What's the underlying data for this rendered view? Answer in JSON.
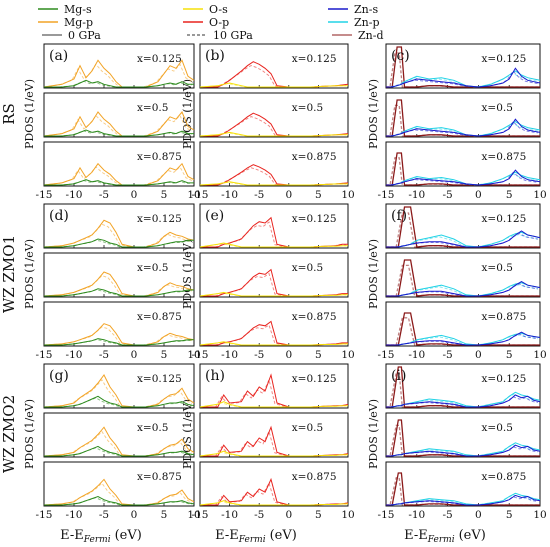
{
  "legend": [
    {
      "label": "Mg-s",
      "color": "#2e8b1e",
      "dash": false
    },
    {
      "label": "Mg-p",
      "color": "#f2a427",
      "dash": false
    },
    {
      "label": "0 GPa",
      "color": "#333333",
      "dash": false
    },
    {
      "label": "O-s",
      "color": "#f5e10a",
      "dash": false
    },
    {
      "label": "O-p",
      "color": "#e8241f",
      "dash": false
    },
    {
      "label": "10 GPa",
      "color": "#333333",
      "dash": true
    },
    {
      "label": "Zn-s",
      "color": "#1a1acc",
      "dash": false
    },
    {
      "label": "Zn-p",
      "color": "#22d3e6",
      "dash": false
    },
    {
      "label": "Zn-d",
      "color": "#8b1a1a",
      "dash": false
    }
  ],
  "row_groups": [
    "RS",
    "WZ ZMO1",
    "WZ ZMO2"
  ],
  "ylabel": "PDOS (1/eV)",
  "xlabel_main": "E-E",
  "xlabel_sub": "Fermi",
  "xlabel_unit": "(eV)",
  "x_ticks": [
    "-15",
    "-10",
    "-5",
    "0",
    "5",
    "10"
  ],
  "panel_letters": [
    "(a)",
    "(b)",
    "(c)",
    "(d)",
    "(e)",
    "(f)",
    "(g)",
    "(h)",
    "(i)"
  ],
  "concentrations": [
    "x=0.125",
    "x=0.5",
    "x=0.875"
  ],
  "chart_data": {
    "type": "line",
    "xlabel": "E-E_Fermi (eV)",
    "ylabel": "PDOS (1/eV)",
    "xlim": [
      -15,
      10
    ],
    "grid": false,
    "legend_position": "top",
    "columns": [
      "Mg",
      "O",
      "Zn"
    ],
    "pressures": [
      "0 GPa",
      "10 GPa"
    ],
    "panels": [
      {
        "letter": "(a)",
        "structure": "RS",
        "species": "Mg",
        "x": [
          -15,
          -12,
          -10,
          -9,
          -8,
          -7,
          -6,
          -5,
          -4,
          -3,
          -2,
          0,
          2,
          4,
          5,
          6,
          7,
          8,
          9,
          10
        ],
        "series": {
          "Mg-p": [
            0,
            0.2,
            0.6,
            1.6,
            0.7,
            1.2,
            2.0,
            1.4,
            1.0,
            0.4,
            0,
            0,
            0,
            0.4,
            1.0,
            1.6,
            1.4,
            2.0,
            0.8,
            0.5
          ],
          "Mg-s": [
            0,
            0,
            0.1,
            0.3,
            0.5,
            0.3,
            0.4,
            0.2,
            0.1,
            0,
            0,
            0,
            0,
            0.1,
            0.2,
            0.3,
            0.2,
            0.4,
            0.2,
            0.2
          ]
        }
      },
      {
        "letter": "(b)",
        "structure": "RS",
        "species": "O",
        "x": [
          -15,
          -12,
          -11,
          -10,
          -8,
          -7,
          -6,
          -5,
          -4,
          -3,
          -2,
          0,
          2,
          4,
          6,
          8,
          9,
          10
        ],
        "series": {
          "O-p": [
            0,
            0,
            0.2,
            0.5,
            1.2,
            1.6,
            1.9,
            1.7,
            1.4,
            1.0,
            0.1,
            0,
            0,
            0,
            0.05,
            0.1,
            0.15,
            0.2
          ],
          "O-s": [
            0,
            0.1,
            0.2,
            0.3,
            0.1,
            0,
            0,
            0,
            0,
            0,
            0,
            0,
            0,
            0,
            0.05,
            0.1,
            0.1,
            0.1
          ]
        }
      },
      {
        "letter": "(c)",
        "structure": "RS",
        "species": "Zn",
        "x": [
          -15,
          -14,
          -13.2,
          -12.5,
          -12,
          -10,
          -8,
          -6,
          -4,
          -2,
          0,
          2,
          4,
          5,
          6,
          7,
          8,
          9,
          10
        ],
        "series": {
          "Zn-d": [
            0,
            0,
            3.0,
            3.0,
            0,
            0,
            0.1,
            0.1,
            0,
            0,
            0,
            0,
            0,
            0,
            0,
            0,
            0,
            0,
            0
          ],
          "Zn-p": [
            0,
            0,
            0.1,
            0.2,
            0.4,
            0.8,
            0.6,
            0.7,
            0.5,
            0.1,
            0,
            0.2,
            0.6,
            0.9,
            1.2,
            0.9,
            0.7,
            0.6,
            0.5
          ],
          "Zn-s": [
            0,
            0,
            0.1,
            0.2,
            0.3,
            0.6,
            0.5,
            0.4,
            0.3,
            0.1,
            0,
            0.1,
            0.3,
            0.6,
            1.4,
            0.8,
            0.5,
            0.4,
            0.3
          ]
        }
      },
      {
        "letter": "(d)",
        "structure": "WZ ZMO1",
        "species": "Mg",
        "x": [
          -15,
          -12,
          -10,
          -9,
          -8,
          -7,
          -6,
          -5,
          -4,
          -3,
          -2,
          0,
          2,
          4,
          5,
          6,
          7,
          8,
          9,
          10
        ],
        "series": {
          "Mg-p": [
            0,
            0.1,
            0.3,
            0.5,
            0.7,
            0.9,
            1.4,
            2.0,
            1.8,
            1.1,
            0.2,
            0,
            0,
            0.3,
            0.8,
            1.1,
            0.9,
            0.8,
            0.6,
            0.5
          ],
          "Mg-s": [
            0,
            0,
            0.1,
            0.2,
            0.3,
            0.4,
            0.6,
            0.5,
            0.3,
            0.2,
            0,
            0,
            0,
            0.1,
            0.2,
            0.3,
            0.4,
            0.4,
            0.5,
            0.5
          ]
        }
      },
      {
        "letter": "(e)",
        "structure": "WZ ZMO1",
        "species": "O",
        "x": [
          -15,
          -12,
          -11,
          -10,
          -8,
          -7,
          -6,
          -5,
          -4,
          -3,
          -2,
          0,
          2,
          4,
          6,
          8,
          9,
          10
        ],
        "series": {
          "O-p": [
            0,
            0,
            0.2,
            0.3,
            0.6,
            1.1,
            1.6,
            1.9,
            1.8,
            2.2,
            0.2,
            0,
            0,
            0,
            0.05,
            0.1,
            0.2,
            0.2
          ],
          "O-s": [
            0,
            0.2,
            0.3,
            0.2,
            0,
            0,
            0,
            0,
            0,
            0,
            0,
            0,
            0,
            0,
            0.05,
            0.05,
            0.1,
            0.1
          ]
        }
      },
      {
        "letter": "(f)",
        "structure": "WZ ZMO1",
        "species": "Zn",
        "x": [
          -15,
          -14,
          -13,
          -12,
          -11,
          -10,
          -8,
          -6,
          -4,
          -2,
          0,
          2,
          4,
          5,
          6,
          7,
          8,
          9,
          10
        ],
        "series": {
          "Zn-d": [
            0,
            0,
            0,
            3.0,
            3.0,
            0,
            0.1,
            0.1,
            0,
            0,
            0,
            0,
            0,
            0,
            0,
            0,
            0,
            0,
            0
          ],
          "Zn-p": [
            0,
            0,
            0,
            0.1,
            0.2,
            0.5,
            0.7,
            0.9,
            0.6,
            0.1,
            0,
            0.2,
            0.5,
            0.8,
            1.0,
            1.1,
            0.9,
            0.8,
            0.7
          ],
          "Zn-s": [
            0,
            0,
            0,
            0.1,
            0.2,
            0.3,
            0.4,
            0.4,
            0.2,
            0,
            0,
            0.1,
            0.3,
            0.5,
            0.9,
            1.2,
            0.9,
            0.8,
            0.7
          ]
        }
      },
      {
        "letter": "(g)",
        "structure": "WZ ZMO2",
        "species": "Mg",
        "x": [
          -15,
          -12,
          -10,
          -9,
          -8,
          -7,
          -6,
          -5,
          -4,
          -3,
          -2,
          0,
          2,
          4,
          5,
          6,
          7,
          8,
          9,
          10
        ],
        "series": {
          "Mg-p": [
            0,
            0.1,
            0.3,
            0.7,
            1.0,
            1.3,
            1.8,
            2.4,
            1.5,
            0.9,
            0.1,
            0,
            0,
            0.2,
            0.6,
            0.9,
            1.0,
            1.4,
            0.6,
            0.3
          ],
          "Mg-s": [
            0,
            0,
            0.1,
            0.2,
            0.4,
            0.6,
            0.8,
            0.5,
            0.3,
            0.2,
            0,
            0,
            0,
            0.1,
            0.2,
            0.3,
            0.3,
            0.4,
            0.2,
            0.1
          ]
        }
      },
      {
        "letter": "(h)",
        "structure": "WZ ZMO2",
        "species": "O",
        "x": [
          -15,
          -12,
          -11,
          -10,
          -8,
          -7,
          -6,
          -5,
          -4,
          -3,
          -2,
          0,
          2,
          4,
          6,
          8,
          9,
          10
        ],
        "series": {
          "O-p": [
            0,
            0,
            0.9,
            0.3,
            0.4,
            1.2,
            0.8,
            1.5,
            1.2,
            2.4,
            0.3,
            0,
            0,
            0,
            0.05,
            0.1,
            0.1,
            0.2
          ],
          "O-s": [
            0,
            0.2,
            0.4,
            0.2,
            0,
            0,
            0,
            0,
            0,
            0,
            0,
            0,
            0,
            0,
            0.05,
            0.05,
            0.1,
            0.1
          ]
        }
      },
      {
        "letter": "(i)",
        "structure": "WZ ZMO2",
        "species": "Zn",
        "x": [
          -15,
          -14,
          -13,
          -12.5,
          -12,
          -10,
          -8,
          -6,
          -4,
          -2,
          0,
          2,
          4,
          5,
          6,
          7,
          8,
          9,
          10
        ],
        "series": {
          "Zn-d": [
            0,
            0,
            3.0,
            3.0,
            0,
            0,
            0.1,
            0.1,
            0,
            0,
            0,
            0,
            0,
            0,
            0,
            0,
            0,
            0,
            0
          ],
          "Zn-p": [
            0,
            0,
            0.1,
            0.1,
            0.2,
            0.4,
            0.6,
            0.5,
            0.4,
            0.1,
            0,
            0.2,
            0.4,
            0.8,
            1.1,
            0.9,
            0.8,
            0.6,
            0.5
          ],
          "Zn-s": [
            0,
            0,
            0.1,
            0.1,
            0.2,
            0.3,
            0.4,
            0.3,
            0.2,
            0,
            0,
            0.1,
            0.3,
            0.5,
            0.9,
            0.7,
            0.8,
            0.5,
            0.4
          ]
        }
      }
    ]
  }
}
